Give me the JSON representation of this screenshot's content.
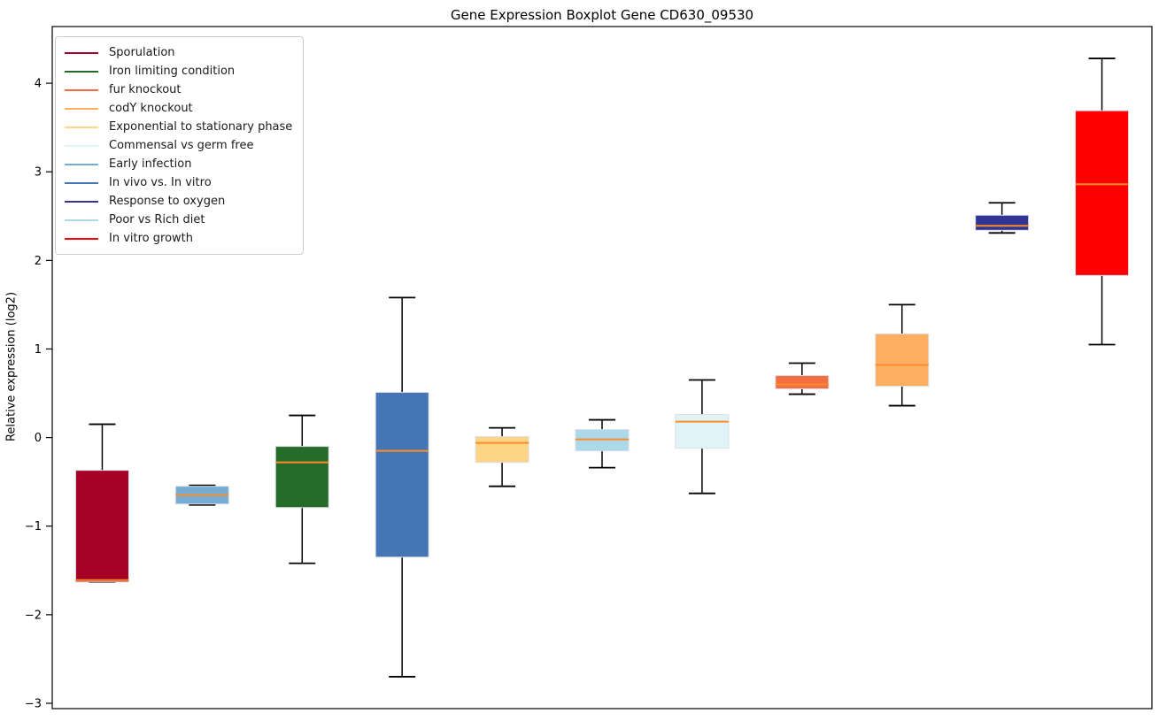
{
  "title": "Gene Expression Boxplot Gene CD630_09530",
  "legend": {
    "position": "upper left",
    "items": [
      {
        "label": "Sporulation",
        "color": "#a60126"
      },
      {
        "label": "Iron limiting condition",
        "color": "#256b2a"
      },
      {
        "label": "fur knockout",
        "color": "#f46d43"
      },
      {
        "label": "codY knockout",
        "color": "#fdae61"
      },
      {
        "label": "Exponential to stationary phase",
        "color": "#fdd585"
      },
      {
        "label": "Commensal vs germ free",
        "color": "#e0f3f8"
      },
      {
        "label": "Early infection",
        "color": "#74add1"
      },
      {
        "label": "In vivo vs. In vitro",
        "color": "#4575b4"
      },
      {
        "label": "Response to oxygen",
        "color": "#313695"
      },
      {
        "label": "Poor vs Rich diet",
        "color": "#abd9e9"
      },
      {
        "label": "In vitro growth",
        "color": "#ff0000"
      }
    ]
  },
  "chart_data": {
    "type": "boxplot",
    "title": "Gene Expression Boxplot Gene CD630_09530",
    "xlabel": "",
    "ylabel": "Relative expression (log2)",
    "ylim": [
      -3.06,
      4.64
    ],
    "yticks": [
      -3,
      -2,
      -1,
      0,
      1,
      2,
      3,
      4
    ],
    "ytick_labels": [
      "−3",
      "−2",
      "−1",
      "0",
      "1",
      "2",
      "3",
      "4"
    ],
    "grid": false,
    "legend_position": "upper left",
    "median_color": "#ff8c26",
    "whisker_color": "#000000",
    "box_edge_color": "#d9dde2",
    "boxes": [
      {
        "label": "Sporulation",
        "color": "#a60126",
        "whisker_low": -1.63,
        "q1": -1.63,
        "median": -1.61,
        "q3": -0.37,
        "whisker_high": 0.15
      },
      {
        "label": "Early infection",
        "color": "#74add1",
        "whisker_low": -0.76,
        "q1": -0.75,
        "median": -0.65,
        "q3": -0.55,
        "whisker_high": -0.54
      },
      {
        "label": "Iron limiting condition",
        "color": "#256b2a",
        "whisker_low": -1.42,
        "q1": -0.79,
        "median": -0.28,
        "q3": -0.1,
        "whisker_high": 0.25
      },
      {
        "label": "In vivo vs. In vitro",
        "color": "#4575b4",
        "whisker_low": -2.7,
        "q1": -1.35,
        "median": -0.15,
        "q3": 0.51,
        "whisker_high": 1.58
      },
      {
        "label": "Exponential to stationary phase",
        "color": "#fdd585",
        "whisker_low": -0.55,
        "q1": -0.28,
        "median": -0.06,
        "q3": 0.01,
        "whisker_high": 0.11
      },
      {
        "label": "Poor vs Rich diet",
        "color": "#abd9e9",
        "whisker_low": -0.34,
        "q1": -0.15,
        "median": -0.02,
        "q3": 0.09,
        "whisker_high": 0.2
      },
      {
        "label": "Commensal vs germ free",
        "color": "#e0f3f8",
        "whisker_low": -0.63,
        "q1": -0.12,
        "median": 0.18,
        "q3": 0.26,
        "whisker_high": 0.65
      },
      {
        "label": "fur knockout",
        "color": "#f46d43",
        "whisker_low": 0.49,
        "q1": 0.55,
        "median": 0.6,
        "q3": 0.7,
        "whisker_high": 0.84
      },
      {
        "label": "codY knockout",
        "color": "#fdae61",
        "whisker_low": 0.36,
        "q1": 0.58,
        "median": 0.82,
        "q3": 1.17,
        "whisker_high": 1.5
      },
      {
        "label": "Response to oxygen",
        "color": "#313695",
        "whisker_low": 2.31,
        "q1": 2.34,
        "median": 2.39,
        "q3": 2.51,
        "whisker_high": 2.65
      },
      {
        "label": "In vitro growth",
        "color": "#ff0000",
        "whisker_low": 1.05,
        "q1": 1.83,
        "median": 2.86,
        "q3": 3.69,
        "whisker_high": 4.28
      }
    ]
  }
}
